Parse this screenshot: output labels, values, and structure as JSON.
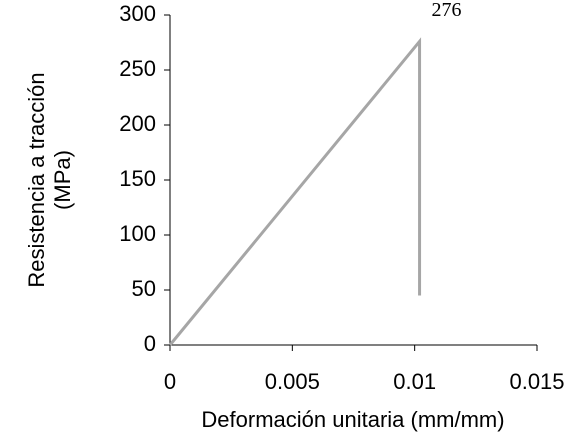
{
  "chart_data": {
    "type": "line",
    "xlabel": "Deformación unitaria (mm/mm)",
    "ylabel": [
      "Resistencia a tracción",
      "(MPa)"
    ],
    "series": [
      {
        "color": "#a6a6a6",
        "x": [
          0,
          0.0102,
          0.0102
        ],
        "values": [
          0,
          276,
          45
        ]
      }
    ],
    "xlim": [
      0,
      0.015
    ],
    "xticks": [
      0,
      0.005,
      0.01,
      0.015
    ],
    "ylim": [
      0,
      300
    ],
    "yticks": [
      0,
      50,
      100,
      150,
      200,
      250,
      300
    ]
  }
}
